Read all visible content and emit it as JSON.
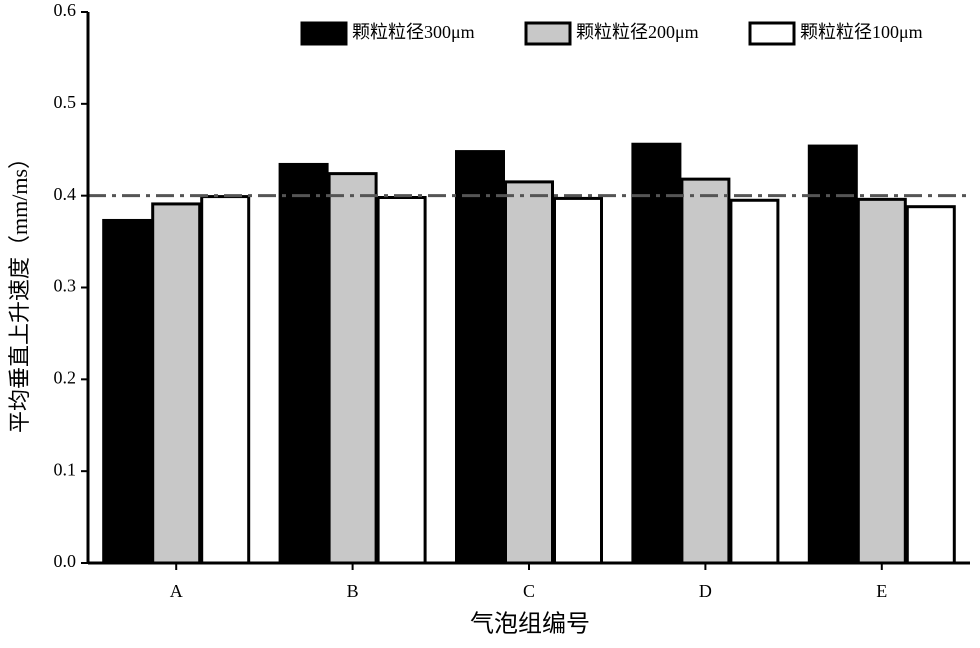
{
  "chart_data": {
    "type": "bar",
    "x_label": "气泡组编号",
    "y_label": "平均垂直上升速度（mm/ms）",
    "categories": [
      "A",
      "B",
      "C",
      "D",
      "E"
    ],
    "series": [
      {
        "name": "颗粒粒径300μm",
        "color": "#000000",
        "values": [
          0.373,
          0.434,
          0.448,
          0.456,
          0.454
        ]
      },
      {
        "name": "颗粒粒径200μm",
        "color": "#c8c8c8",
        "values": [
          0.391,
          0.424,
          0.415,
          0.418,
          0.396
        ]
      },
      {
        "name": "颗粒粒径100μm",
        "color": "#ffffff",
        "values": [
          0.399,
          0.398,
          0.397,
          0.395,
          0.388
        ]
      }
    ],
    "reference_line": 0.4,
    "ylim": [
      0,
      0.6
    ],
    "yticks": [
      {
        "value": 0,
        "label": "0.0"
      },
      0.1,
      0.2,
      0.3,
      0.4,
      0.5,
      0.6
    ],
    "legend": "upper right"
  }
}
